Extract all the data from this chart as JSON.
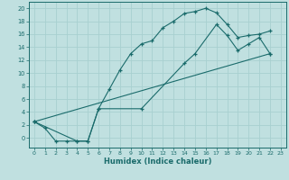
{
  "xlabel": "Humidex (Indice chaleur)",
  "bg_color": "#c0e0e0",
  "line_color": "#1a6b6b",
  "grid_color": "#a8d0d0",
  "xlim": [
    -0.5,
    23.5
  ],
  "ylim": [
    -1.5,
    21.0
  ],
  "xticks": [
    0,
    1,
    2,
    3,
    4,
    5,
    6,
    7,
    8,
    9,
    10,
    11,
    12,
    13,
    14,
    15,
    16,
    17,
    18,
    19,
    20,
    21,
    22,
    23
  ],
  "yticks": [
    0,
    2,
    4,
    6,
    8,
    10,
    12,
    14,
    16,
    18,
    20
  ],
  "line1_x": [
    0,
    1,
    2,
    3,
    4,
    5,
    6,
    7,
    8,
    9,
    10,
    11,
    12,
    13,
    14,
    15,
    16,
    17,
    18,
    19,
    20,
    21,
    22
  ],
  "line1_y": [
    2.5,
    1.5,
    -0.5,
    -0.5,
    -0.5,
    -0.5,
    4.5,
    7.5,
    10.5,
    13.0,
    14.5,
    15.0,
    17.0,
    18.0,
    19.2,
    19.5,
    20.0,
    19.3,
    17.5,
    15.5,
    15.8,
    16.0,
    16.5
  ],
  "line2_x": [
    0,
    4,
    5,
    6,
    10,
    14,
    15,
    17,
    18,
    19,
    20,
    21,
    22
  ],
  "line2_y": [
    2.5,
    -0.5,
    -0.5,
    4.5,
    4.5,
    11.5,
    13.0,
    17.5,
    15.8,
    13.5,
    14.5,
    15.5,
    13.0
  ],
  "line3_x": [
    0,
    22
  ],
  "line3_y": [
    2.5,
    13.0
  ]
}
